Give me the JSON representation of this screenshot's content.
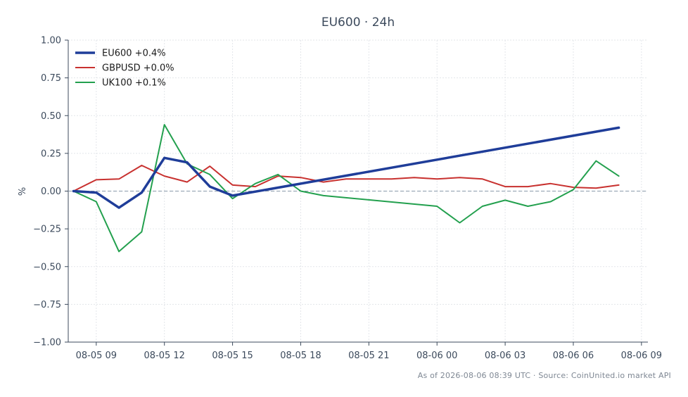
{
  "chart_data": {
    "type": "line",
    "title": "EU600 · 24h",
    "ylabel": "%",
    "xlabel": "",
    "ylim": [
      -1.0,
      1.0
    ],
    "xlim": [
      "2026-08-05 07:46",
      "2026-08-06 09:17"
    ],
    "yticks": [
      1.0,
      0.75,
      0.5,
      0.25,
      0.0,
      -0.25,
      -0.5,
      -0.75,
      -1.0
    ],
    "ytick_labels": [
      "1.00",
      "0.75",
      "0.50",
      "0.25",
      "0.00",
      "−0.25",
      "−0.50",
      "−0.75",
      "−1.00"
    ],
    "xticks": [
      "2026-08-05 09:00",
      "2026-08-05 12:00",
      "2026-08-05 15:00",
      "2026-08-05 18:00",
      "2026-08-05 21:00",
      "2026-08-06 00:00",
      "2026-08-06 03:00",
      "2026-08-06 06:00",
      "2026-08-06 09:00"
    ],
    "xtick_labels": [
      "08-05 09",
      "08-05 12",
      "08-05 15",
      "08-05 18",
      "08-05 21",
      "08-06 00",
      "08-06 03",
      "08-06 06",
      "08-06 09"
    ],
    "zero_line": true,
    "grid": true,
    "legend_position": "top-left",
    "series": [
      {
        "name": "EU600 +0.4%",
        "color": "#1f3d99",
        "width": 3.5,
        "x": [
          "2026-08-05 08:00",
          "2026-08-05 09:00",
          "2026-08-05 10:00",
          "2026-08-05 11:00",
          "2026-08-05 12:00",
          "2026-08-05 13:00",
          "2026-08-05 14:00",
          "2026-08-05 15:00",
          "2026-08-06 08:00"
        ],
        "y": [
          0.0,
          -0.01,
          -0.11,
          -0.01,
          0.22,
          0.19,
          0.03,
          -0.03,
          0.42
        ]
      },
      {
        "name": "GBPUSD +0.0%",
        "color": "#c8312f",
        "width": 2,
        "x": [
          "2026-08-05 08:00",
          "2026-08-05 09:00",
          "2026-08-05 10:00",
          "2026-08-05 11:00",
          "2026-08-05 12:00",
          "2026-08-05 13:00",
          "2026-08-05 14:00",
          "2026-08-05 15:00",
          "2026-08-05 16:00",
          "2026-08-05 17:00",
          "2026-08-05 18:00",
          "2026-08-05 19:00",
          "2026-08-05 20:00",
          "2026-08-05 21:00",
          "2026-08-05 22:00",
          "2026-08-05 23:00",
          "2026-08-06 00:00",
          "2026-08-06 01:00",
          "2026-08-06 02:00",
          "2026-08-06 03:00",
          "2026-08-06 04:00",
          "2026-08-06 05:00",
          "2026-08-06 06:00",
          "2026-08-06 07:00",
          "2026-08-06 08:00"
        ],
        "y": [
          0.0,
          0.075,
          0.08,
          0.17,
          0.1,
          0.06,
          0.165,
          0.04,
          0.03,
          0.1,
          0.09,
          0.06,
          0.08,
          0.08,
          0.08,
          0.09,
          0.08,
          0.09,
          0.08,
          0.03,
          0.03,
          0.05,
          0.025,
          0.02,
          0.04
        ]
      },
      {
        "name": "UK100 +0.1%",
        "color": "#23a04e",
        "width": 2,
        "x": [
          "2026-08-05 08:00",
          "2026-08-05 09:00",
          "2026-08-05 10:00",
          "2026-08-05 11:00",
          "2026-08-05 12:00",
          "2026-08-05 13:00",
          "2026-08-05 14:00",
          "2026-08-05 15:00",
          "2026-08-05 16:00",
          "2026-08-05 17:00",
          "2026-08-05 18:00",
          "2026-08-05 19:00",
          "2026-08-06 00:00",
          "2026-08-06 01:00",
          "2026-08-06 02:00",
          "2026-08-06 03:00",
          "2026-08-06 04:00",
          "2026-08-06 05:00",
          "2026-08-06 06:00",
          "2026-08-06 07:00",
          "2026-08-06 08:00"
        ],
        "y": [
          0.0,
          -0.07,
          -0.4,
          -0.27,
          0.44,
          0.18,
          0.11,
          -0.05,
          0.05,
          0.11,
          0.0,
          -0.03,
          -0.1,
          -0.21,
          -0.1,
          -0.06,
          -0.1,
          -0.07,
          0.01,
          0.2,
          0.1
        ]
      }
    ]
  },
  "footer": {
    "text": "As of 2026-08-06 08:39 UTC · Source: CoinUnited.io market API"
  }
}
